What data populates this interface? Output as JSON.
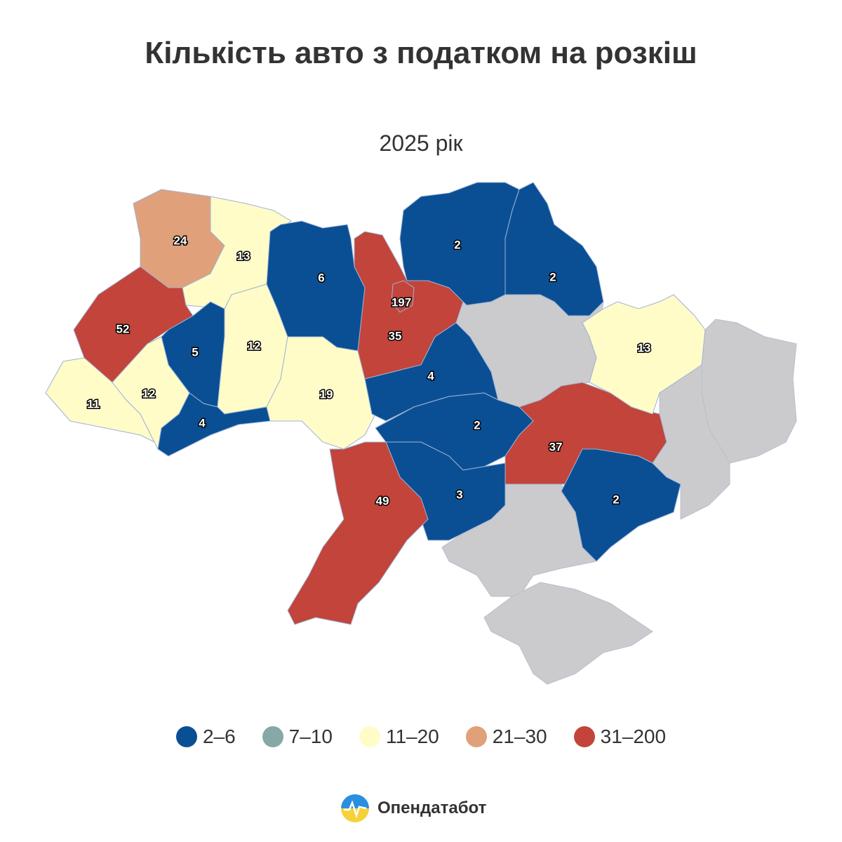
{
  "title": "Кількість авто з податком на розкіш",
  "subtitle": "2025 рік",
  "legend": [
    {
      "label": "2–6",
      "color": "#0a4f94",
      "min": 2,
      "max": 6
    },
    {
      "label": "7–10",
      "color": "#86a8a6",
      "min": 7,
      "max": 10
    },
    {
      "label": "11–20",
      "color": "#fffcc8",
      "min": 11,
      "max": 20
    },
    {
      "label": "21–30",
      "color": "#e0a07a",
      "min": 21,
      "max": 30
    },
    {
      "label": "31–200",
      "color": "#c2443a",
      "min": 31,
      "max": 200
    }
  ],
  "regions": [
    {
      "value": 24
    },
    {
      "value": 13
    },
    {
      "value": 52
    },
    {
      "value": 5
    },
    {
      "value": 12
    },
    {
      "value": 11
    },
    {
      "value": 12
    },
    {
      "value": 4
    },
    {
      "value": 6
    },
    {
      "value": 19
    },
    {
      "value": 35
    },
    {
      "value": 197
    },
    {
      "value": 2
    },
    {
      "value": 2
    },
    {
      "value": 4
    },
    {
      "value": 2
    },
    {
      "value": 37
    },
    {
      "value": 3
    },
    {
      "value": 49
    },
    {
      "value": 2
    },
    {
      "value": 13
    }
  ],
  "brand": "Опендатабот"
}
